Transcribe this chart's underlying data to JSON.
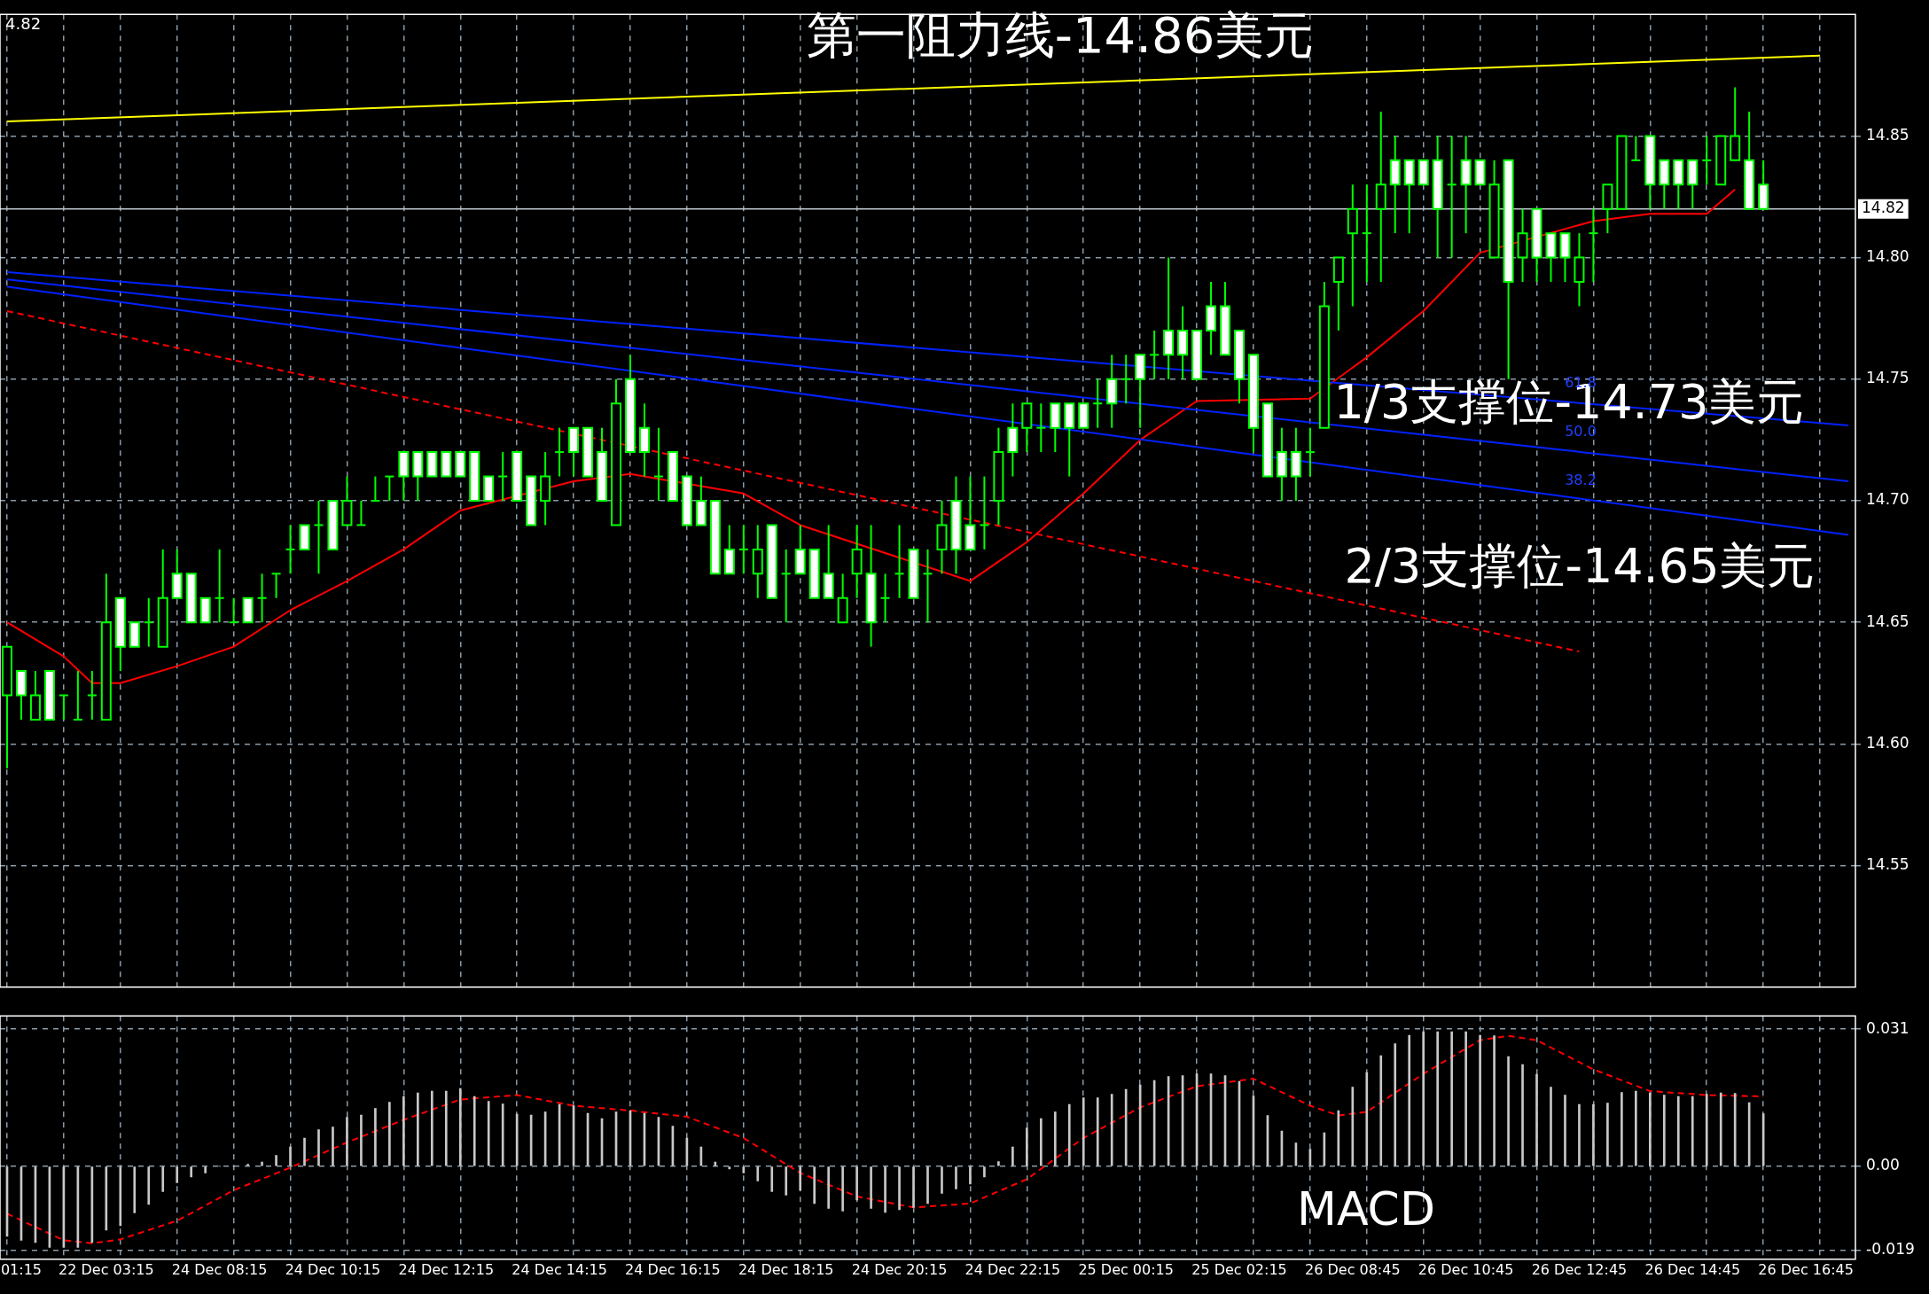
{
  "chart_data": [
    {
      "type": "candlestick",
      "categories": [
        null,
        null,
        null,
        null,
        null,
        null,
        null,
        null,
        null,
        null,
        null,
        null,
        null,
        null,
        null,
        null,
        null,
        null,
        null,
        null,
        null,
        null,
        null,
        null,
        null,
        null,
        null,
        null,
        null,
        null,
        null,
        null,
        null,
        null,
        null,
        null,
        null,
        null,
        null,
        null,
        null,
        null,
        null,
        null,
        null,
        null,
        null,
        null,
        null,
        null,
        null,
        null,
        null,
        null,
        null,
        null,
        null,
        null,
        null,
        null,
        null,
        null,
        null,
        null,
        null,
        null,
        null,
        null,
        null,
        null,
        null,
        null,
        null,
        null,
        null,
        null,
        null,
        null,
        null,
        null,
        null,
        null,
        null,
        null,
        null,
        null,
        null,
        null,
        null,
        null,
        null,
        null,
        null,
        null,
        null,
        null,
        null,
        null,
        null,
        null,
        null,
        null,
        null,
        null,
        null,
        null,
        null,
        null,
        null,
        null,
        null,
        null,
        null,
        null,
        null,
        null,
        null,
        null,
        null,
        null,
        null,
        null,
        null,
        null,
        null,
        null,
        null,
        null,
        null,
        null,
        null
      ],
      "ohlc": [
        [
          14.62,
          14.64,
          14.59,
          14.64
        ],
        [
          14.63,
          14.63,
          14.61,
          14.62
        ],
        [
          14.61,
          14.63,
          14.61,
          14.62
        ],
        [
          14.63,
          14.63,
          14.61,
          14.61
        ],
        [
          14.62,
          14.62,
          14.61,
          14.62
        ],
        [
          14.61,
          14.63,
          14.61,
          14.61
        ],
        [
          14.62,
          14.63,
          14.61,
          14.62
        ],
        [
          14.61,
          14.67,
          14.61,
          14.65
        ],
        [
          14.66,
          14.66,
          14.63,
          14.64
        ],
        [
          14.65,
          14.65,
          14.64,
          14.64
        ],
        [
          14.65,
          14.66,
          14.64,
          14.65
        ],
        [
          14.64,
          14.68,
          14.64,
          14.66
        ],
        [
          14.67,
          14.68,
          14.66,
          14.66
        ],
        [
          14.67,
          14.67,
          14.65,
          14.65
        ],
        [
          14.66,
          14.66,
          14.65,
          14.65
        ],
        [
          14.66,
          14.68,
          14.65,
          14.66
        ],
        [
          14.65,
          14.66,
          14.65,
          14.65
        ],
        [
          14.66,
          14.66,
          14.65,
          14.65
        ],
        [
          14.66,
          14.67,
          14.65,
          14.66
        ],
        [
          14.67,
          14.67,
          14.66,
          14.67
        ],
        [
          14.68,
          14.69,
          14.67,
          14.68
        ],
        [
          14.69,
          14.69,
          14.68,
          14.68
        ],
        [
          14.69,
          14.7,
          14.67,
          14.69
        ],
        [
          14.7,
          14.7,
          14.68,
          14.68
        ],
        [
          14.69,
          14.71,
          14.69,
          14.7
        ],
        [
          14.69,
          14.7,
          14.69,
          14.69
        ],
        [
          14.7,
          14.71,
          14.7,
          14.7
        ],
        [
          14.71,
          14.71,
          14.7,
          14.71
        ],
        [
          14.72,
          14.72,
          14.7,
          14.71
        ],
        [
          14.72,
          14.72,
          14.7,
          14.71
        ],
        [
          14.72,
          14.72,
          14.71,
          14.71
        ],
        [
          14.72,
          14.72,
          14.71,
          14.71
        ],
        [
          14.72,
          14.72,
          14.71,
          14.71
        ],
        [
          14.72,
          14.72,
          14.7,
          14.7
        ],
        [
          14.71,
          14.71,
          14.7,
          14.7
        ],
        [
          14.71,
          14.72,
          14.7,
          14.71
        ],
        [
          14.72,
          14.72,
          14.7,
          14.7
        ],
        [
          14.71,
          14.71,
          14.69,
          14.69
        ],
        [
          14.7,
          14.72,
          14.69,
          14.71
        ],
        [
          14.72,
          14.73,
          14.71,
          14.72
        ],
        [
          14.73,
          14.73,
          14.71,
          14.72
        ],
        [
          14.73,
          14.73,
          14.71,
          14.71
        ],
        [
          14.72,
          14.73,
          14.7,
          14.7
        ],
        [
          14.69,
          14.75,
          14.69,
          14.74
        ],
        [
          14.75,
          14.76,
          14.72,
          14.72
        ],
        [
          14.73,
          14.74,
          14.71,
          14.72
        ],
        [
          14.71,
          14.73,
          14.7,
          14.71
        ],
        [
          14.72,
          14.72,
          14.7,
          14.7
        ],
        [
          14.71,
          14.71,
          14.69,
          14.69
        ],
        [
          14.7,
          14.71,
          14.69,
          14.69
        ],
        [
          14.7,
          14.7,
          14.67,
          14.67
        ],
        [
          14.68,
          14.69,
          14.67,
          14.67
        ],
        [
          14.68,
          14.69,
          14.67,
          14.68
        ],
        [
          14.67,
          14.69,
          14.66,
          14.68
        ],
        [
          14.69,
          14.69,
          14.66,
          14.66
        ],
        [
          14.67,
          14.68,
          14.65,
          14.67
        ],
        [
          14.68,
          14.69,
          14.67,
          14.67
        ],
        [
          14.68,
          14.68,
          14.66,
          14.66
        ],
        [
          14.67,
          14.69,
          14.66,
          14.66
        ],
        [
          14.65,
          14.67,
          14.65,
          14.66
        ],
        [
          14.67,
          14.69,
          14.66,
          14.68
        ],
        [
          14.67,
          14.69,
          14.64,
          14.65
        ],
        [
          14.66,
          14.67,
          14.65,
          14.66
        ],
        [
          14.67,
          14.69,
          14.66,
          14.67
        ],
        [
          14.68,
          14.68,
          14.66,
          14.66
        ],
        [
          14.67,
          14.68,
          14.65,
          14.67
        ],
        [
          14.68,
          14.7,
          14.67,
          14.69
        ],
        [
          14.7,
          14.71,
          14.67,
          14.68
        ],
        [
          14.69,
          14.71,
          14.68,
          14.68
        ],
        [
          14.69,
          14.71,
          14.68,
          14.69
        ],
        [
          14.7,
          14.73,
          14.69,
          14.72
        ],
        [
          14.73,
          14.74,
          14.71,
          14.72
        ],
        [
          14.73,
          14.74,
          14.72,
          14.74
        ],
        [
          14.73,
          14.74,
          14.72,
          14.73
        ],
        [
          14.74,
          14.74,
          14.72,
          14.73
        ],
        [
          14.74,
          14.74,
          14.71,
          14.73
        ],
        [
          14.74,
          14.74,
          14.73,
          14.73
        ],
        [
          14.74,
          14.75,
          14.73,
          14.74
        ],
        [
          14.75,
          14.76,
          14.73,
          14.74
        ],
        [
          14.75,
          14.76,
          14.74,
          14.75
        ],
        [
          14.76,
          14.76,
          14.73,
          14.75
        ],
        [
          14.76,
          14.77,
          14.75,
          14.76
        ],
        [
          14.77,
          14.8,
          14.75,
          14.76
        ],
        [
          14.77,
          14.78,
          14.75,
          14.76
        ],
        [
          14.77,
          14.77,
          14.75,
          14.75
        ],
        [
          14.78,
          14.79,
          14.76,
          14.77
        ],
        [
          14.78,
          14.79,
          14.76,
          14.76
        ],
        [
          14.77,
          14.77,
          14.74,
          14.75
        ],
        [
          14.76,
          14.76,
          14.72,
          14.73
        ],
        [
          14.74,
          14.74,
          14.71,
          14.71
        ],
        [
          14.72,
          14.73,
          14.7,
          14.71
        ],
        [
          14.72,
          14.73,
          14.7,
          14.71
        ],
        [
          14.72,
          14.73,
          14.71,
          14.72
        ],
        [
          14.73,
          14.79,
          14.73,
          14.78
        ],
        [
          14.79,
          14.8,
          14.77,
          14.8
        ],
        [
          14.81,
          14.83,
          14.78,
          14.82
        ],
        [
          14.81,
          14.83,
          14.79,
          14.81
        ],
        [
          14.82,
          14.86,
          14.79,
          14.83
        ],
        [
          14.84,
          14.85,
          14.81,
          14.83
        ],
        [
          14.84,
          14.84,
          14.81,
          14.83
        ],
        [
          14.84,
          14.84,
          14.83,
          14.83
        ],
        [
          14.84,
          14.85,
          14.8,
          14.82
        ],
        [
          14.83,
          14.85,
          14.8,
          14.83
        ],
        [
          14.84,
          14.85,
          14.81,
          14.83
        ],
        [
          14.84,
          14.84,
          14.83,
          14.83
        ],
        [
          14.8,
          14.84,
          14.8,
          14.83
        ],
        [
          14.84,
          14.84,
          14.75,
          14.79
        ],
        [
          14.8,
          14.82,
          14.79,
          14.81
        ],
        [
          14.82,
          14.82,
          14.79,
          14.8
        ],
        [
          14.81,
          14.81,
          14.79,
          14.8
        ],
        [
          14.81,
          14.81,
          14.79,
          14.8
        ],
        [
          14.79,
          14.81,
          14.78,
          14.8
        ],
        [
          14.81,
          14.82,
          14.79,
          14.81
        ],
        [
          14.82,
          14.83,
          14.81,
          14.83
        ],
        [
          14.82,
          14.85,
          14.82,
          14.85
        ],
        [
          14.84,
          14.85,
          14.84,
          14.84
        ],
        [
          14.85,
          14.85,
          14.82,
          14.83
        ],
        [
          14.84,
          14.84,
          14.82,
          14.83
        ],
        [
          14.84,
          14.84,
          14.82,
          14.83
        ],
        [
          14.84,
          14.84,
          14.82,
          14.83
        ],
        [
          14.84,
          14.85,
          14.83,
          14.84
        ],
        [
          14.83,
          14.85,
          14.83,
          14.85
        ],
        [
          14.84,
          14.87,
          14.84,
          14.85
        ],
        [
          14.84,
          14.86,
          14.82,
          14.82
        ],
        [
          14.83,
          14.84,
          14.82,
          14.82
        ],
        null,
        null,
        null,
        null,
        null,
        null
      ],
      "series": [
        {
          "type": "line",
          "color": "#ffff00",
          "values": [
            14.856,
            null,
            null,
            null,
            null,
            null,
            null,
            null,
            null,
            null,
            null,
            null,
            null,
            null,
            null,
            null,
            null,
            null,
            null,
            null,
            null,
            null,
            null,
            null,
            null,
            null,
            null,
            null,
            null,
            null,
            null,
            null,
            null,
            null,
            null,
            null,
            null,
            null,
            null,
            null,
            null,
            null,
            null,
            null,
            null,
            null,
            null,
            null,
            null,
            null,
            null,
            null,
            null,
            null,
            null,
            null,
            null,
            null,
            null,
            null,
            null,
            null,
            null,
            null,
            null,
            null,
            null,
            null,
            null,
            null,
            null,
            null,
            null,
            null,
            null,
            null,
            null,
            null,
            null,
            null,
            null,
            null,
            null,
            null,
            null,
            null,
            null,
            null,
            null,
            null,
            null,
            null,
            null,
            null,
            null,
            null,
            null,
            null,
            null,
            null,
            null,
            null,
            null,
            null,
            null,
            null,
            null,
            null,
            null,
            null,
            null,
            null,
            null,
            null,
            null,
            null,
            null,
            null,
            null,
            null,
            null,
            null,
            null,
            null,
            null,
            null,
            null,
            null,
            14.883,
            null,
            null
          ]
        },
        {
          "type": "line",
          "color": "#0022ff",
          "values": [
            14.794,
            null,
            null,
            null,
            null,
            null,
            null,
            null,
            null,
            null,
            null,
            null,
            null,
            null,
            null,
            null,
            null,
            null,
            null,
            null,
            null,
            null,
            null,
            null,
            null,
            null,
            null,
            null,
            null,
            null,
            null,
            null,
            null,
            null,
            null,
            null,
            null,
            null,
            null,
            null,
            null,
            null,
            null,
            null,
            null,
            null,
            null,
            null,
            null,
            null,
            null,
            null,
            null,
            null,
            null,
            null,
            null,
            null,
            null,
            null,
            null,
            null,
            null,
            null,
            null,
            null,
            null,
            null,
            null,
            null,
            null,
            null,
            null,
            null,
            null,
            null,
            null,
            null,
            null,
            null,
            null,
            null,
            null,
            null,
            null,
            null,
            null,
            null,
            null,
            null,
            null,
            null,
            null,
            null,
            null,
            null,
            null,
            null,
            null,
            null,
            null,
            null,
            null,
            null,
            null,
            null,
            null,
            null,
            null,
            null,
            null,
            null,
            null,
            null,
            null,
            null,
            null,
            null,
            null,
            null,
            null,
            null,
            null,
            null,
            null,
            null,
            null,
            null,
            null,
            null,
            14.731
          ]
        },
        {
          "type": "line",
          "color": "#0022ff",
          "values": [
            14.791,
            null,
            null,
            null,
            null,
            null,
            null,
            null,
            null,
            null,
            null,
            null,
            null,
            null,
            null,
            null,
            null,
            null,
            null,
            null,
            null,
            null,
            null,
            null,
            null,
            null,
            null,
            null,
            null,
            null,
            null,
            null,
            null,
            null,
            null,
            null,
            null,
            null,
            null,
            null,
            null,
            null,
            null,
            null,
            null,
            null,
            null,
            null,
            null,
            null,
            null,
            null,
            null,
            null,
            null,
            null,
            null,
            null,
            null,
            null,
            null,
            null,
            null,
            null,
            null,
            null,
            null,
            null,
            null,
            null,
            null,
            null,
            null,
            null,
            null,
            null,
            null,
            null,
            null,
            null,
            null,
            null,
            null,
            null,
            null,
            null,
            null,
            null,
            null,
            null,
            null,
            null,
            null,
            null,
            null,
            null,
            null,
            null,
            null,
            null,
            null,
            null,
            null,
            null,
            null,
            null,
            null,
            null,
            null,
            null,
            null,
            null,
            null,
            null,
            null,
            null,
            null,
            null,
            null,
            null,
            null,
            null,
            null,
            null,
            null,
            null,
            null,
            null,
            null,
            null,
            14.708
          ]
        },
        {
          "type": "line",
          "color": "#0022ff",
          "values": [
            14.788,
            null,
            null,
            null,
            null,
            null,
            null,
            null,
            null,
            null,
            null,
            null,
            null,
            null,
            null,
            null,
            null,
            null,
            null,
            null,
            null,
            null,
            null,
            null,
            null,
            null,
            null,
            null,
            null,
            null,
            null,
            null,
            null,
            null,
            null,
            null,
            null,
            null,
            null,
            null,
            null,
            null,
            null,
            null,
            null,
            null,
            null,
            null,
            null,
            null,
            null,
            null,
            null,
            null,
            null,
            null,
            null,
            null,
            null,
            null,
            null,
            null,
            null,
            null,
            null,
            null,
            null,
            null,
            null,
            null,
            null,
            null,
            null,
            null,
            null,
            null,
            null,
            null,
            null,
            null,
            null,
            null,
            null,
            null,
            null,
            null,
            null,
            null,
            null,
            null,
            null,
            null,
            null,
            null,
            null,
            null,
            null,
            null,
            null,
            null,
            null,
            null,
            null,
            null,
            null,
            null,
            null,
            null,
            null,
            null,
            null,
            null,
            null,
            null,
            null,
            null,
            null,
            null,
            null,
            null,
            null,
            null,
            null,
            null,
            null,
            null,
            null,
            null,
            null,
            null,
            14.686
          ]
        },
        {
          "type": "line",
          "color": "#ff0000",
          "line_style": "dashed",
          "values": [
            14.778,
            null,
            null,
            null,
            null,
            null,
            null,
            null,
            null,
            null,
            null,
            null,
            null,
            null,
            null,
            null,
            null,
            null,
            null,
            null,
            null,
            null,
            null,
            null,
            null,
            null,
            null,
            null,
            null,
            null,
            null,
            null,
            null,
            null,
            null,
            null,
            null,
            null,
            null,
            null,
            null,
            null,
            null,
            null,
            null,
            null,
            null,
            null,
            null,
            null,
            null,
            null,
            null,
            null,
            null,
            null,
            null,
            null,
            null,
            null,
            null,
            null,
            null,
            null,
            null,
            null,
            null,
            null,
            null,
            null,
            null,
            null,
            null,
            null,
            null,
            null,
            null,
            null,
            null,
            null,
            null,
            null,
            null,
            null,
            null,
            null,
            null,
            null,
            null,
            null,
            null,
            null,
            null,
            null,
            null,
            null,
            null,
            null,
            null,
            null,
            null,
            null,
            null,
            null,
            null,
            null,
            null,
            null,
            null,
            null,
            null,
            14.638,
            null,
            null,
            null,
            null,
            null,
            null,
            null,
            null,
            null,
            null,
            null,
            null,
            null,
            null,
            null,
            null,
            null,
            null,
            null
          ]
        },
        {
          "type": "line",
          "color": "#ff0000",
          "values": [
            14.65,
            null,
            null,
            null,
            14.636,
            null,
            14.625,
            null,
            14.625,
            null,
            null,
            null,
            14.632,
            null,
            null,
            null,
            14.64,
            null,
            null,
            null,
            14.655,
            null,
            null,
            null,
            14.667,
            null,
            null,
            null,
            14.68,
            null,
            null,
            null,
            14.696,
            null,
            null,
            null,
            null,
            null,
            null,
            null,
            14.708,
            null,
            null,
            null,
            14.711,
            null,
            null,
            null,
            null,
            null,
            null,
            null,
            14.703,
            null,
            null,
            null,
            14.69,
            null,
            null,
            null,
            null,
            null,
            null,
            null,
            null,
            null,
            null,
            null,
            14.667,
            null,
            null,
            null,
            14.683,
            null,
            null,
            null,
            14.703,
            null,
            null,
            null,
            14.725,
            null,
            null,
            null,
            14.741,
            null,
            null,
            null,
            null,
            null,
            null,
            null,
            14.742,
            null,
            null,
            null,
            14.759,
            null,
            null,
            null,
            14.778,
            null,
            null,
            null,
            14.802,
            null,
            null,
            null,
            null,
            null,
            null,
            null,
            14.815,
            null,
            null,
            null,
            14.818,
            null,
            null,
            null,
            14.818,
            null,
            14.828,
            null,
            null,
            null,
            null,
            null,
            null,
            null,
            null
          ]
        }
      ],
      "ylim": [
        14.5,
        14.9
      ],
      "yticks": [
        {
          "value": 14.55,
          "label": "14.55"
        },
        {
          "value": 14.6,
          "label": "14.60"
        },
        {
          "value": 14.65,
          "label": "14.65"
        },
        {
          "value": 14.7,
          "label": "14.70"
        },
        {
          "value": 14.75,
          "label": "14.75"
        },
        {
          "value": 14.8,
          "label": "14.80"
        },
        {
          "value": 14.85,
          "label": "14.85"
        }
      ],
      "ref_lines": [
        {
          "axis": "y",
          "value": 14.82,
          "label": "14.82",
          "color": "#c0c8d0"
        }
      ],
      "annotations": [
        "4.82",
        "第一阻力线-14.86美元",
        "1/3支撑位-14.73美元",
        "2/3支撑位-14.65美元",
        "61.8",
        "50.0",
        "38.2"
      ],
      "grid": true,
      "tick_labels": "y"
    },
    {
      "type": "bar",
      "categories": [
        null,
        "01:15",
        null,
        null,
        null,
        null,
        null,
        "22 Dec 03:15",
        null,
        null,
        null,
        null,
        null,
        null,
        null,
        "24 Dec 08:15",
        null,
        null,
        null,
        null,
        null,
        null,
        null,
        "24 Dec 10:15",
        null,
        null,
        null,
        null,
        null,
        null,
        null,
        "24 Dec 12:15",
        null,
        null,
        null,
        null,
        null,
        null,
        null,
        "24 Dec 14:15",
        null,
        null,
        null,
        null,
        null,
        null,
        null,
        "24 Dec 16:15",
        null,
        null,
        null,
        null,
        null,
        null,
        null,
        "24 Dec 18:15",
        null,
        null,
        null,
        null,
        null,
        null,
        null,
        "24 Dec 20:15",
        null,
        null,
        null,
        null,
        null,
        null,
        null,
        "24 Dec 22:15",
        null,
        null,
        null,
        null,
        null,
        null,
        null,
        "25 Dec 00:15",
        null,
        null,
        null,
        null,
        null,
        null,
        null,
        "25 Dec 02:15",
        null,
        null,
        null,
        null,
        null,
        null,
        null,
        "26 Dec 08:45",
        null,
        null,
        null,
        null,
        null,
        null,
        null,
        "26 Dec 10:45",
        null,
        null,
        null,
        null,
        null,
        null,
        null,
        "26 Dec 12:45",
        null,
        null,
        null,
        null,
        null,
        null,
        null,
        "26 Dec 14:45",
        null,
        null,
        null,
        null,
        null,
        null,
        null,
        "26 Dec 16:45",
        null,
        null,
        null
      ],
      "series": [
        {
          "type": "bar",
          "color": "#c8c8c8",
          "values": [
            -0.0158,
            -0.0167,
            -0.0172,
            -0.0183,
            -0.0183,
            -0.0183,
            -0.0172,
            -0.0144,
            -0.0134,
            -0.0105,
            -0.0086,
            -0.0057,
            -0.0037,
            -0.0024,
            -0.0015,
            0,
            0,
            0.0005,
            0.001,
            0.0025,
            0.0044,
            0.0064,
            0.0083,
            0.0089,
            0.0111,
            0.0116,
            0.0131,
            0.0145,
            0.0158,
            0.0166,
            0.017,
            0.017,
            0.0176,
            0.0158,
            0.0147,
            0.0141,
            0.0118,
            0.0116,
            0.0123,
            0.014,
            0.0137,
            0.012,
            0.0108,
            0.0123,
            0.0126,
            0.012,
            0.0111,
            0.0091,
            0.0064,
            0.0044,
            0.001,
            -0.0006,
            -0.0015,
            -0.0033,
            -0.0057,
            -0.0065,
            -0.0054,
            -0.0084,
            -0.0095,
            -0.0101,
            -0.0076,
            -0.0095,
            -0.0104,
            -0.0098,
            -0.0093,
            -0.0084,
            -0.0061,
            -0.0051,
            -0.004,
            -0.0024,
            0.0011,
            0.0044,
            0.0087,
            0.0108,
            0.0123,
            0.014,
            0.0155,
            0.0155,
            0.0163,
            0.0174,
            0.0184,
            0.0194,
            0.0203,
            0.0205,
            0.0209,
            0.0209,
            0.0205,
            0.0192,
            0.0159,
            0.0115,
            0.008,
            0.0053,
            0.0039,
            0.0076,
            0.0126,
            0.0179,
            0.0212,
            0.025,
            0.0277,
            0.0296,
            0.0304,
            0.0304,
            0.0304,
            0.0304,
            0.0296,
            0.0295,
            0.0248,
            0.023,
            0.0208,
            0.0179,
            0.0161,
            0.014,
            0.014,
            0.0143,
            0.0167,
            0.017,
            0.0166,
            0.0161,
            0.0158,
            0.0158,
            0.0163,
            0.0166,
            0.0165,
            0.0144,
            0.0119,
            null,
            null,
            null,
            null,
            null,
            null
          ]
        },
        {
          "type": "line",
          "color": "#ff0000",
          "line_style": "dashed",
          "values": [
            -0.0107,
            null,
            null,
            null,
            -0.0167,
            null,
            -0.0174,
            null,
            -0.0165,
            null,
            null,
            null,
            -0.0123,
            null,
            null,
            null,
            -0.0054,
            null,
            null,
            null,
            -0.0003,
            null,
            null,
            null,
            0.0054,
            null,
            null,
            null,
            0.0105,
            null,
            null,
            null,
            0.0151,
            null,
            null,
            null,
            0.0161,
            null,
            null,
            null,
            0.0137,
            null,
            null,
            null,
            0.0126,
            null,
            null,
            null,
            0.0112,
            null,
            null,
            null,
            0.0064,
            null,
            null,
            null,
            -0.0015,
            null,
            null,
            null,
            -0.0068,
            null,
            null,
            null,
            -0.0093,
            null,
            null,
            null,
            -0.0084,
            null,
            null,
            null,
            -0.0029,
            null,
            null,
            null,
            0.0064,
            null,
            null,
            null,
            0.0133,
            null,
            null,
            null,
            0.0181,
            null,
            null,
            null,
            0.0198,
            null,
            null,
            null,
            0.0137,
            null,
            0.0115,
            null,
            0.0123,
            null,
            null,
            null,
            0.0209,
            null,
            null,
            null,
            0.0285,
            null,
            0.0295,
            null,
            0.0285,
            null,
            null,
            null,
            0.0219,
            null,
            null,
            null,
            0.017,
            null,
            null,
            null,
            0.0161,
            null,
            null,
            null,
            0.0158,
            null,
            null,
            null,
            null,
            null,
            null
          ]
        }
      ],
      "ylim": [
        -0.021,
        0.034
      ],
      "yticks": [
        {
          "value": -0.019,
          "label": "-0.019"
        },
        {
          "value": 0,
          "label": "0.00"
        },
        {
          "value": 0.031,
          "label": "0.031"
        }
      ],
      "annotations": [
        "MACD"
      ],
      "grid": true
    }
  ]
}
